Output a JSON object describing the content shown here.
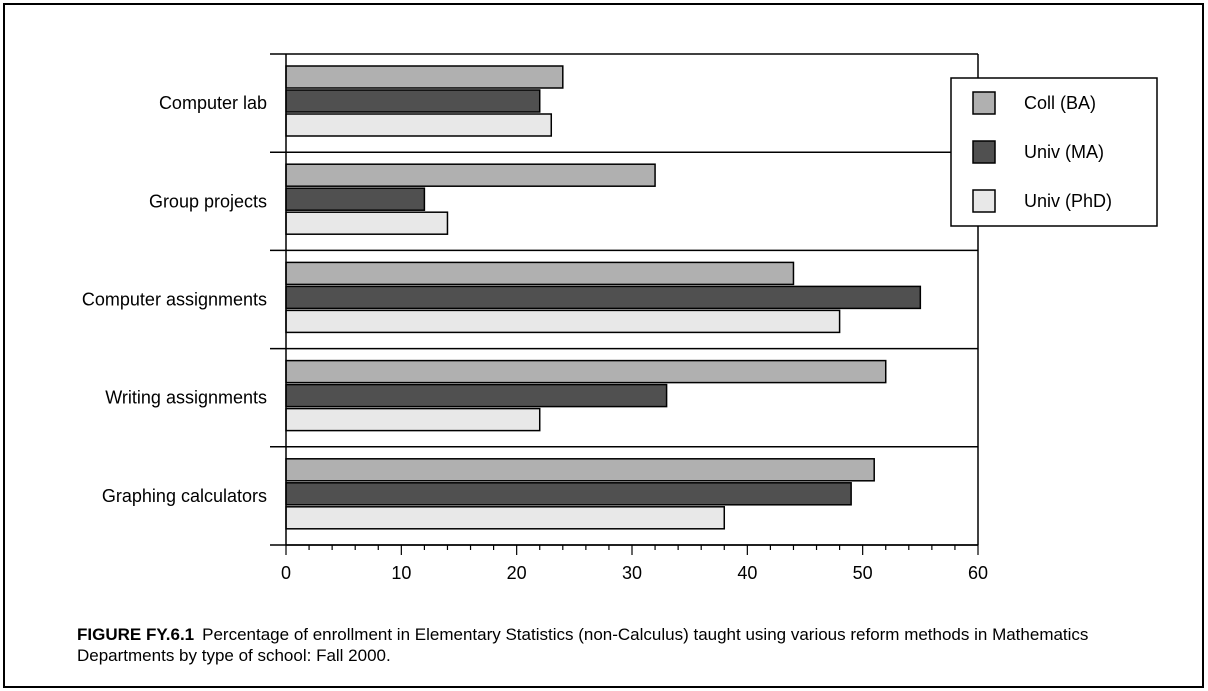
{
  "chart_data": {
    "type": "bar",
    "orientation": "horizontal",
    "categories": [
      "Computer lab",
      "Group projects",
      "Computer assignments",
      "Writing assignments",
      "Graphing calculators"
    ],
    "series": [
      {
        "name": "Coll (BA)",
        "color": "#b0b0b0",
        "values": [
          24,
          32,
          44,
          52,
          51
        ]
      },
      {
        "name": "Univ (MA)",
        "color": "#505050",
        "values": [
          22,
          12,
          55,
          33,
          49
        ]
      },
      {
        "name": "Univ (PhD)",
        "color": "#e8e8e8",
        "values": [
          23,
          14,
          48,
          22,
          38
        ]
      }
    ],
    "xlim": [
      0,
      60
    ],
    "xticks": [
      "0",
      "10",
      "20",
      "30",
      "40",
      "50",
      "60"
    ],
    "legend_position": "top-right",
    "grid": false
  },
  "caption": {
    "label": "FIGURE FY.6.1",
    "text": "Percentage of enrollment in Elementary Statistics (non-Calculus) taught using various reform methods in Mathematics Departments by type of school: Fall 2000."
  }
}
